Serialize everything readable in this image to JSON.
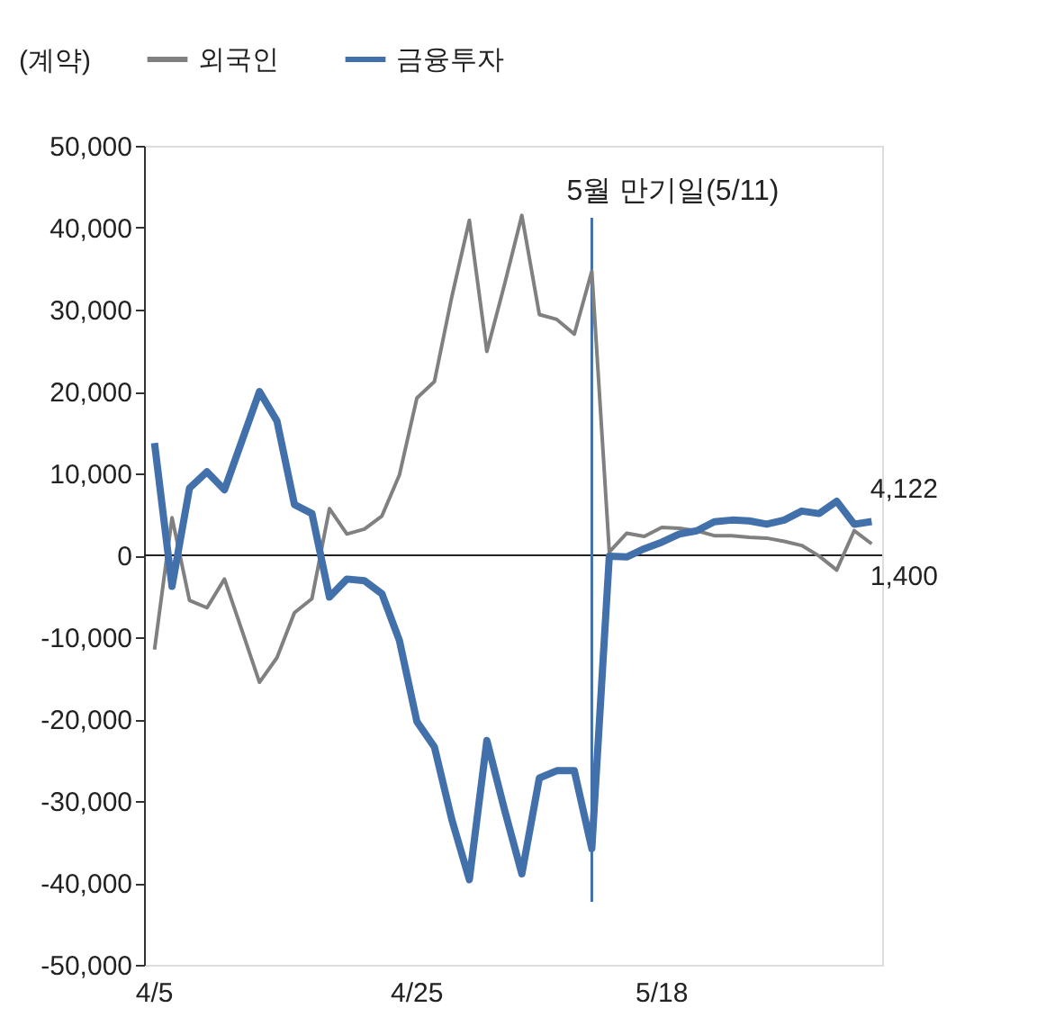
{
  "chart_data": {
    "type": "line",
    "ylabel": "(계약)",
    "categories": [
      "4/5",
      null,
      null,
      null,
      null,
      null,
      null,
      null,
      null,
      null,
      null,
      null,
      null,
      null,
      null,
      "4/25",
      null,
      null,
      null,
      null,
      null,
      null,
      null,
      null,
      null,
      null,
      null,
      null,
      null,
      "5/18",
      null,
      null,
      null,
      null,
      null,
      null,
      null,
      null,
      null,
      null,
      null,
      null
    ],
    "series": [
      {
        "name": "외국인",
        "color": "#808080",
        "values": [
          -11500,
          4600,
          -5500,
          -6400,
          -2900,
          -9200,
          -15500,
          -12500,
          -7000,
          -5300,
          5700,
          2600,
          3200,
          4800,
          9800,
          19200,
          21200,
          31600,
          40900,
          24900,
          33000,
          41500,
          29400,
          28800,
          27000,
          34700,
          400,
          2700,
          2300,
          3400,
          3300,
          3000,
          2400,
          2400,
          2200,
          2100,
          1700,
          1200,
          -100,
          -1800,
          3000,
          1400
        ],
        "value_labels": [
          null,
          null,
          null,
          null,
          null,
          null,
          null,
          null,
          null,
          null,
          null,
          null,
          null,
          null,
          null,
          null,
          null,
          null,
          null,
          null,
          null,
          null,
          null,
          null,
          null,
          null,
          null,
          null,
          null,
          null,
          null,
          null,
          null,
          null,
          null,
          null,
          null,
          null,
          null,
          null,
          null,
          "1,400"
        ]
      },
      {
        "name": "금융투자",
        "color": "#4170aa",
        "values": [
          13700,
          -3800,
          8200,
          10200,
          8000,
          14000,
          20000,
          16400,
          6200,
          5100,
          -5100,
          -2900,
          -3100,
          -4700,
          -10400,
          -20300,
          -23400,
          -32300,
          -39600,
          -22600,
          -31000,
          -38900,
          -27200,
          -26300,
          -26300,
          -35800,
          -100,
          -200,
          800,
          1600,
          2600,
          3000,
          4100,
          4300,
          4200,
          3800,
          4300,
          5400,
          5100,
          6600,
          3800,
          4122
        ],
        "value_labels": [
          null,
          null,
          null,
          null,
          null,
          null,
          null,
          null,
          null,
          null,
          null,
          null,
          null,
          null,
          null,
          null,
          null,
          null,
          null,
          null,
          null,
          null,
          null,
          null,
          null,
          null,
          null,
          null,
          null,
          null,
          null,
          null,
          null,
          null,
          null,
          null,
          null,
          null,
          null,
          null,
          null,
          "4,122"
        ]
      }
    ],
    "ylim": [
      -50000,
      50000
    ],
    "yticks": [
      {
        "value": -50000,
        "label": "-50,000"
      },
      {
        "value": -40000,
        "label": "-40,000"
      },
      {
        "value": -30000,
        "label": "-30,000"
      },
      {
        "value": -20000,
        "label": "-20,000"
      },
      {
        "value": -10000,
        "label": "-10,000"
      },
      0,
      {
        "value": 10000,
        "label": "10,000"
      },
      {
        "value": 20000,
        "label": "20,000"
      },
      {
        "value": 30000,
        "label": "30,000"
      },
      {
        "value": 40000,
        "label": "40,000"
      },
      {
        "value": 50000,
        "label": "50,000"
      }
    ],
    "annotations": [
      "5월 만기일(5/11)"
    ],
    "legend": "top",
    "grid": false,
    "marker": "none",
    "line_style": "solid"
  }
}
